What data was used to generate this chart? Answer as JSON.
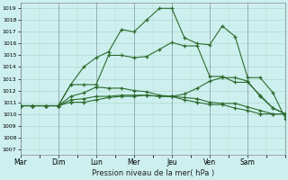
{
  "xlabel": "Pression niveau de la mer( hPa )",
  "bg_color": "#cdf0ef",
  "grid_color": "#b0d8cc",
  "line_color": "#2d6a2d",
  "ylim": [
    1006.5,
    1019.5
  ],
  "yticks": [
    1007,
    1008,
    1009,
    1010,
    1011,
    1012,
    1013,
    1014,
    1015,
    1016,
    1017,
    1018,
    1019
  ],
  "xtick_labels": [
    "Mar",
    "Dim",
    "Lun",
    "Mer",
    "Jeu",
    "Ven",
    "Sam"
  ],
  "n_days": 7,
  "series": [
    {
      "x": [
        0.0,
        0.5,
        1.0,
        1.5,
        2.0,
        2.5,
        3.0,
        3.5,
        4.0,
        4.5,
        5.0,
        5.5,
        6.0,
        6.5
      ],
      "y": [
        1010.7,
        1010.7,
        1014.0,
        1015.3,
        1017.0,
        1018.0,
        1016.5,
        1019.0,
        1019.0,
        1016.0,
        1015.9,
        1017.6,
        1016.5,
        1013.1
      ]
    },
    {
      "x": [
        0.0,
        0.5,
        1.0,
        1.5,
        2.0,
        2.5,
        3.0,
        3.5,
        4.0,
        4.5,
        5.0,
        5.5,
        6.0,
        6.5
      ],
      "y": [
        1010.7,
        1010.7,
        1012.5,
        1014.8,
        1015.3,
        1015.0,
        1015.5,
        1015.9,
        1016.1,
        1016.5,
        1016.0,
        1017.6,
        1016.5,
        1013.1
      ]
    },
    {
      "x": [
        0.0,
        1.0,
        2.0,
        3.0,
        4.0,
        5.0,
        5.5,
        6.0,
        6.5,
        7.0
      ],
      "y": [
        1010.7,
        1011.5,
        1012.3,
        1012.2,
        1012.5,
        1012.8,
        1013.1,
        1013.1,
        1012.8,
        1011.8
      ]
    },
    {
      "x": [
        0.0,
        1.0,
        2.0,
        3.0,
        4.0,
        5.0,
        6.0,
        7.0
      ],
      "y": [
        1010.7,
        1011.3,
        1011.6,
        1011.7,
        1011.8,
        1011.9,
        1011.8,
        1011.5
      ]
    },
    {
      "x": [
        0.0,
        1.0,
        2.0,
        3.0,
        4.0,
        5.0,
        6.0,
        7.0
      ],
      "y": [
        1010.7,
        1011.0,
        1011.2,
        1011.3,
        1011.3,
        1011.2,
        1011.0,
        1010.8
      ]
    }
  ],
  "series2": [
    [
      0.0,
      0.33,
      0.67,
      1.0,
      1.33,
      1.67,
      2.0,
      2.33,
      2.67,
      3.0,
      3.33,
      3.67,
      4.0,
      4.33,
      4.67,
      5.0,
      5.33,
      5.67,
      6.0,
      6.33,
      6.67,
      7.0
    ],
    [
      1010.7,
      1010.7,
      1010.7,
      1010.7,
      1012.5,
      1014.0,
      1014.8,
      1015.3,
      1017.2,
      1017.0,
      1018.0,
      1019.0,
      1019.0,
      1016.5,
      1016.0,
      1015.9,
      1017.5,
      1016.6,
      1013.1,
      1013.1,
      1011.8,
      1009.6
    ],
    [
      1010.7,
      1010.7,
      1010.7,
      1010.7,
      1012.5,
      1012.5,
      1012.5,
      1015.0,
      1015.0,
      1014.8,
      1014.9,
      1015.5,
      1016.1,
      1015.8,
      1015.8,
      1013.2,
      1013.2,
      1012.7,
      1012.7,
      1011.6,
      1010.5,
      1010.0
    ],
    [
      1010.7,
      1010.7,
      1010.7,
      1010.7,
      1011.5,
      1011.8,
      1012.3,
      1012.2,
      1012.2,
      1012.0,
      1011.9,
      1011.6,
      1011.5,
      1011.7,
      1012.2,
      1012.8,
      1013.1,
      1013.1,
      1012.8,
      1011.5,
      1010.5,
      1010.0
    ],
    [
      1010.7,
      1010.7,
      1010.7,
      1010.7,
      1011.2,
      1011.3,
      1011.5,
      1011.5,
      1011.6,
      1011.6,
      1011.6,
      1011.5,
      1011.5,
      1011.2,
      1011.0,
      1010.8,
      1010.8,
      1010.5,
      1010.3,
      1010.0,
      1010.0,
      1010.0
    ],
    [
      1010.7,
      1010.7,
      1010.7,
      1010.7,
      1011.0,
      1011.0,
      1011.2,
      1011.4,
      1011.5,
      1011.5,
      1011.6,
      1011.5,
      1011.5,
      1011.4,
      1011.3,
      1011.0,
      1010.9,
      1010.9,
      1010.6,
      1010.3,
      1010.0,
      1010.0
    ]
  ],
  "main_series": {
    "x": [
      0,
      0.5,
      1.0,
      1.5,
      2.0,
      2.33,
      2.67,
      3.0,
      3.5,
      4.0,
      4.33,
      4.67,
      5.0,
      5.33,
      5.67,
      6.0,
      6.33,
      6.67,
      7.0
    ],
    "y": [
      1010.7,
      1010.7,
      1014.0,
      1015.3,
      1017.0,
      1018.0,
      1017.0,
      1016.5,
      1019.0,
      1019.0,
      1016.0,
      1015.9,
      1017.5,
      1017.6,
      1016.6,
      1013.1,
      1012.5,
      1011.5,
      1009.6
    ]
  }
}
